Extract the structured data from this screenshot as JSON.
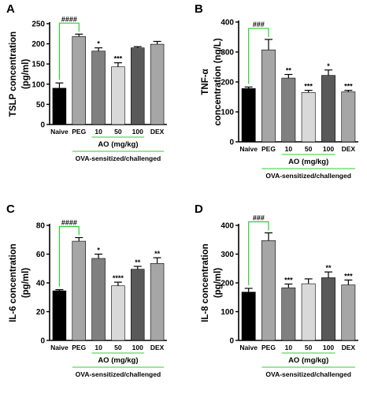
{
  "chart_data": [
    {
      "type": "bar",
      "panel_label": "A",
      "ylabel": [
        "TSLP concentration",
        "(pg/ml)"
      ],
      "ylim": [
        0,
        250
      ],
      "yticks": [
        0,
        50,
        100,
        150,
        200,
        250
      ],
      "categories": [
        "Naive",
        "PEG",
        "10",
        "50",
        "100",
        "DEX"
      ],
      "values": [
        90,
        218,
        182,
        143,
        190,
        199
      ],
      "errors": [
        13,
        6,
        8,
        10,
        3,
        7
      ],
      "significance": [
        "",
        "",
        "*",
        "***",
        "",
        ""
      ],
      "bracket_label": "####",
      "group_label": "AO (mg/kg)",
      "outer_group_label": "OVA-sensitized/challenged",
      "colors": [
        "#000000",
        "#a6a6a6",
        "#808080",
        "#d9d9d9",
        "#595959",
        "#a6a6a6"
      ]
    },
    {
      "type": "bar",
      "panel_label": "B",
      "ylabel": [
        "TNF-α",
        "concentration (ng/L)"
      ],
      "ylim": [
        0,
        400
      ],
      "yticks": [
        0,
        100,
        200,
        300,
        400
      ],
      "categories": [
        "Naive",
        "PEG",
        "10",
        "50",
        "100",
        "DEX"
      ],
      "values": [
        178,
        307,
        213,
        165,
        222,
        167
      ],
      "errors": [
        5,
        35,
        12,
        7,
        18,
        5
      ],
      "significance": [
        "",
        "",
        "**",
        "***",
        "*",
        "***"
      ],
      "bracket_label": "###",
      "group_label": "AO (mg/kg)",
      "outer_group_label": "OVA-sensitized/challenged",
      "colors": [
        "#000000",
        "#a6a6a6",
        "#808080",
        "#d9d9d9",
        "#595959",
        "#a6a6a6"
      ]
    },
    {
      "type": "bar",
      "panel_label": "C",
      "ylabel": [
        "IL-6 concentration",
        "(pg/ml)"
      ],
      "ylim": [
        0,
        80
      ],
      "yticks": [
        0,
        20,
        40,
        60,
        80
      ],
      "categories": [
        "Naive",
        "PEG",
        "10",
        "50",
        "100",
        "DEX"
      ],
      "values": [
        34.5,
        69,
        57,
        38,
        49.5,
        53.5
      ],
      "errors": [
        0.8,
        2.5,
        3,
        2.5,
        2,
        4
      ],
      "significance": [
        "",
        "",
        "*",
        "****",
        "**",
        "**"
      ],
      "bracket_label": "####",
      "group_label": "AO (mg/kg)",
      "outer_group_label": "OVA-sensitized/challenged",
      "colors": [
        "#000000",
        "#a6a6a6",
        "#808080",
        "#d9d9d9",
        "#595959",
        "#a6a6a6"
      ]
    },
    {
      "type": "bar",
      "panel_label": "D",
      "ylabel": [
        "IL-8 concentration",
        "(pg/ml)"
      ],
      "ylim": [
        0,
        400
      ],
      "yticks": [
        0,
        100,
        200,
        300,
        400
      ],
      "categories": [
        "Naive",
        "PEG",
        "10",
        "50",
        "100",
        "DEX"
      ],
      "values": [
        168,
        347,
        183,
        197,
        218,
        193
      ],
      "errors": [
        13,
        27,
        13,
        17,
        20,
        17
      ],
      "significance": [
        "",
        "",
        "***",
        "",
        "**",
        "***"
      ],
      "bracket_label": "###",
      "group_label": "AO (mg/kg)",
      "outer_group_label": "OVA-sensitized/challenged",
      "colors": [
        "#000000",
        "#a6a6a6",
        "#808080",
        "#d9d9d9",
        "#595959",
        "#a6a6a6"
      ]
    }
  ],
  "style": {
    "bracket_color": "#33cc33",
    "group_line_color": "#33cc33"
  }
}
